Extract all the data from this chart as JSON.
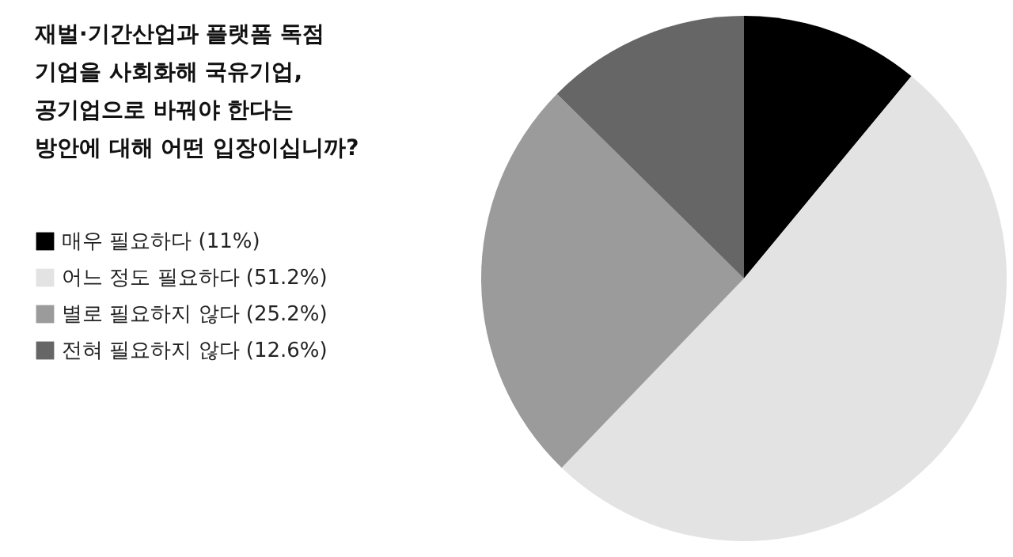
{
  "chart_data": {
    "type": "pie",
    "title": "재벌·기간산업과 플랫폼 독점 기업을 사회화해 국유기업, 공기업으로 바꿔야 한다는 방안에 대해 어떤 입장이십니까?",
    "categories": [
      "매우 필요하다 (11%)",
      "어느 정도 필요하다 (51.2%)",
      "별로 필요하지 않다 (25.2%)",
      "전혀 필요하지 않다 (12.6%)"
    ],
    "values": [
      11,
      51.2,
      25.2,
      12.6
    ],
    "colors": [
      "#000000",
      "#e3e3e3",
      "#9b9b9c",
      "#666667"
    ],
    "legend": "left"
  }
}
